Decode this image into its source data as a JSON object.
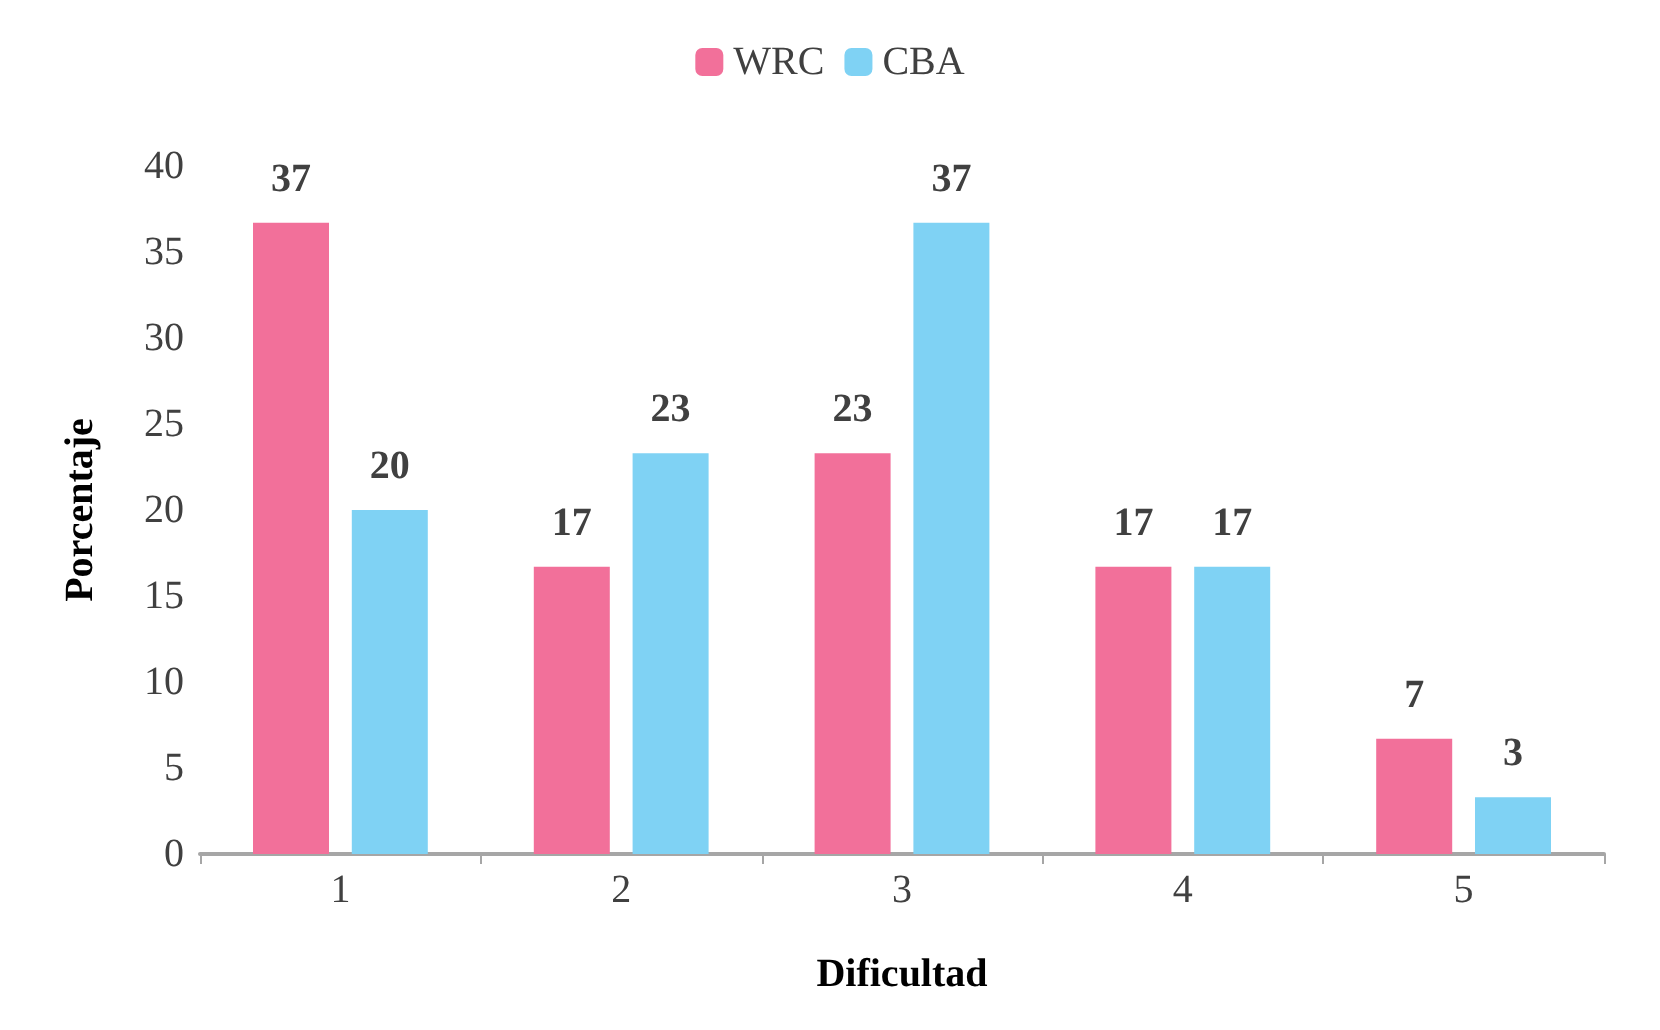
{
  "chart_data": {
    "type": "bar",
    "xlabel": "Dificultad",
    "ylabel": "Porcentaje",
    "categories": [
      "1",
      "2",
      "3",
      "4",
      "5"
    ],
    "series": [
      {
        "name": "WRC",
        "color": "#f2709a",
        "values": [
          36.7,
          16.7,
          23.3,
          16.7,
          6.7
        ],
        "value_labels": [
          "37",
          "17",
          "23",
          "17",
          "7"
        ]
      },
      {
        "name": "CBA",
        "color": "#7fd2f4",
        "values": [
          20,
          23.3,
          36.7,
          16.7,
          3.3
        ],
        "value_labels": [
          "20",
          "23",
          "37",
          "17",
          "3"
        ]
      }
    ],
    "ylim": [
      0,
      40
    ],
    "yticks": [
      0,
      5,
      10,
      15,
      20,
      25,
      30,
      35,
      40
    ],
    "grid": false,
    "legend": "top"
  }
}
